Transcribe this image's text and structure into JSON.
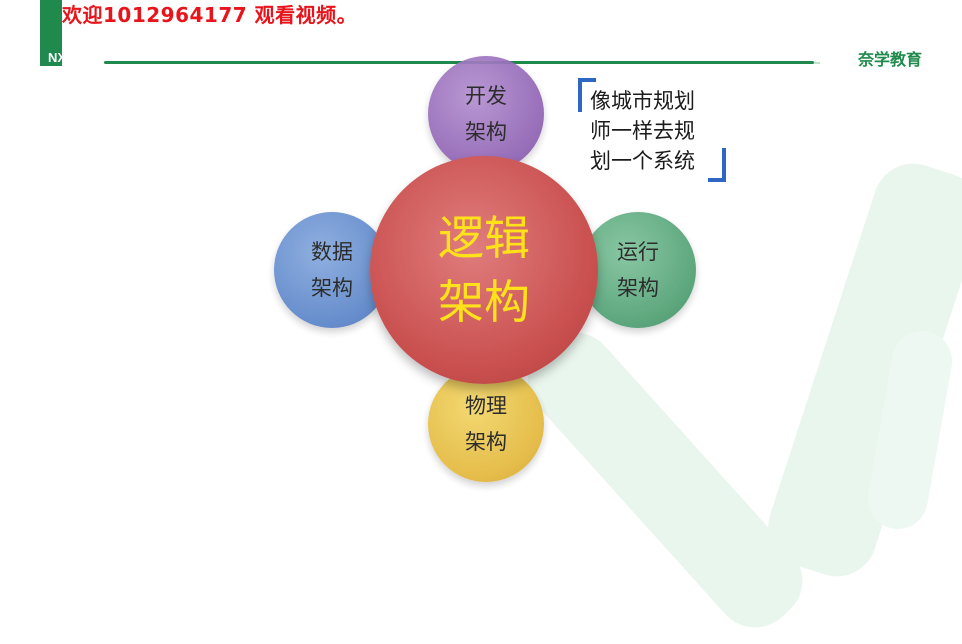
{
  "watermark": {
    "text": "欢迎1012964177 观看视频。"
  },
  "header": {
    "logo_text": "NX•••",
    "brand": "奈学教育"
  },
  "diagram": {
    "center": {
      "line1": "逻辑",
      "line2": "架构"
    },
    "top": {
      "line1": "开发",
      "line2": "架构"
    },
    "left": {
      "line1": "数据",
      "line2": "架构"
    },
    "right": {
      "line1": "运行",
      "line2": "架构"
    },
    "bottom": {
      "line1": "物理",
      "line2": "架构"
    }
  },
  "callout": {
    "line1": "像城市规划",
    "line2": "师一样去规",
    "line3": "划一个系统"
  },
  "colors": {
    "accent_green": "#1f8a4c",
    "watermark_red": "#e8141b",
    "bracket_blue": "#2e66c4"
  }
}
